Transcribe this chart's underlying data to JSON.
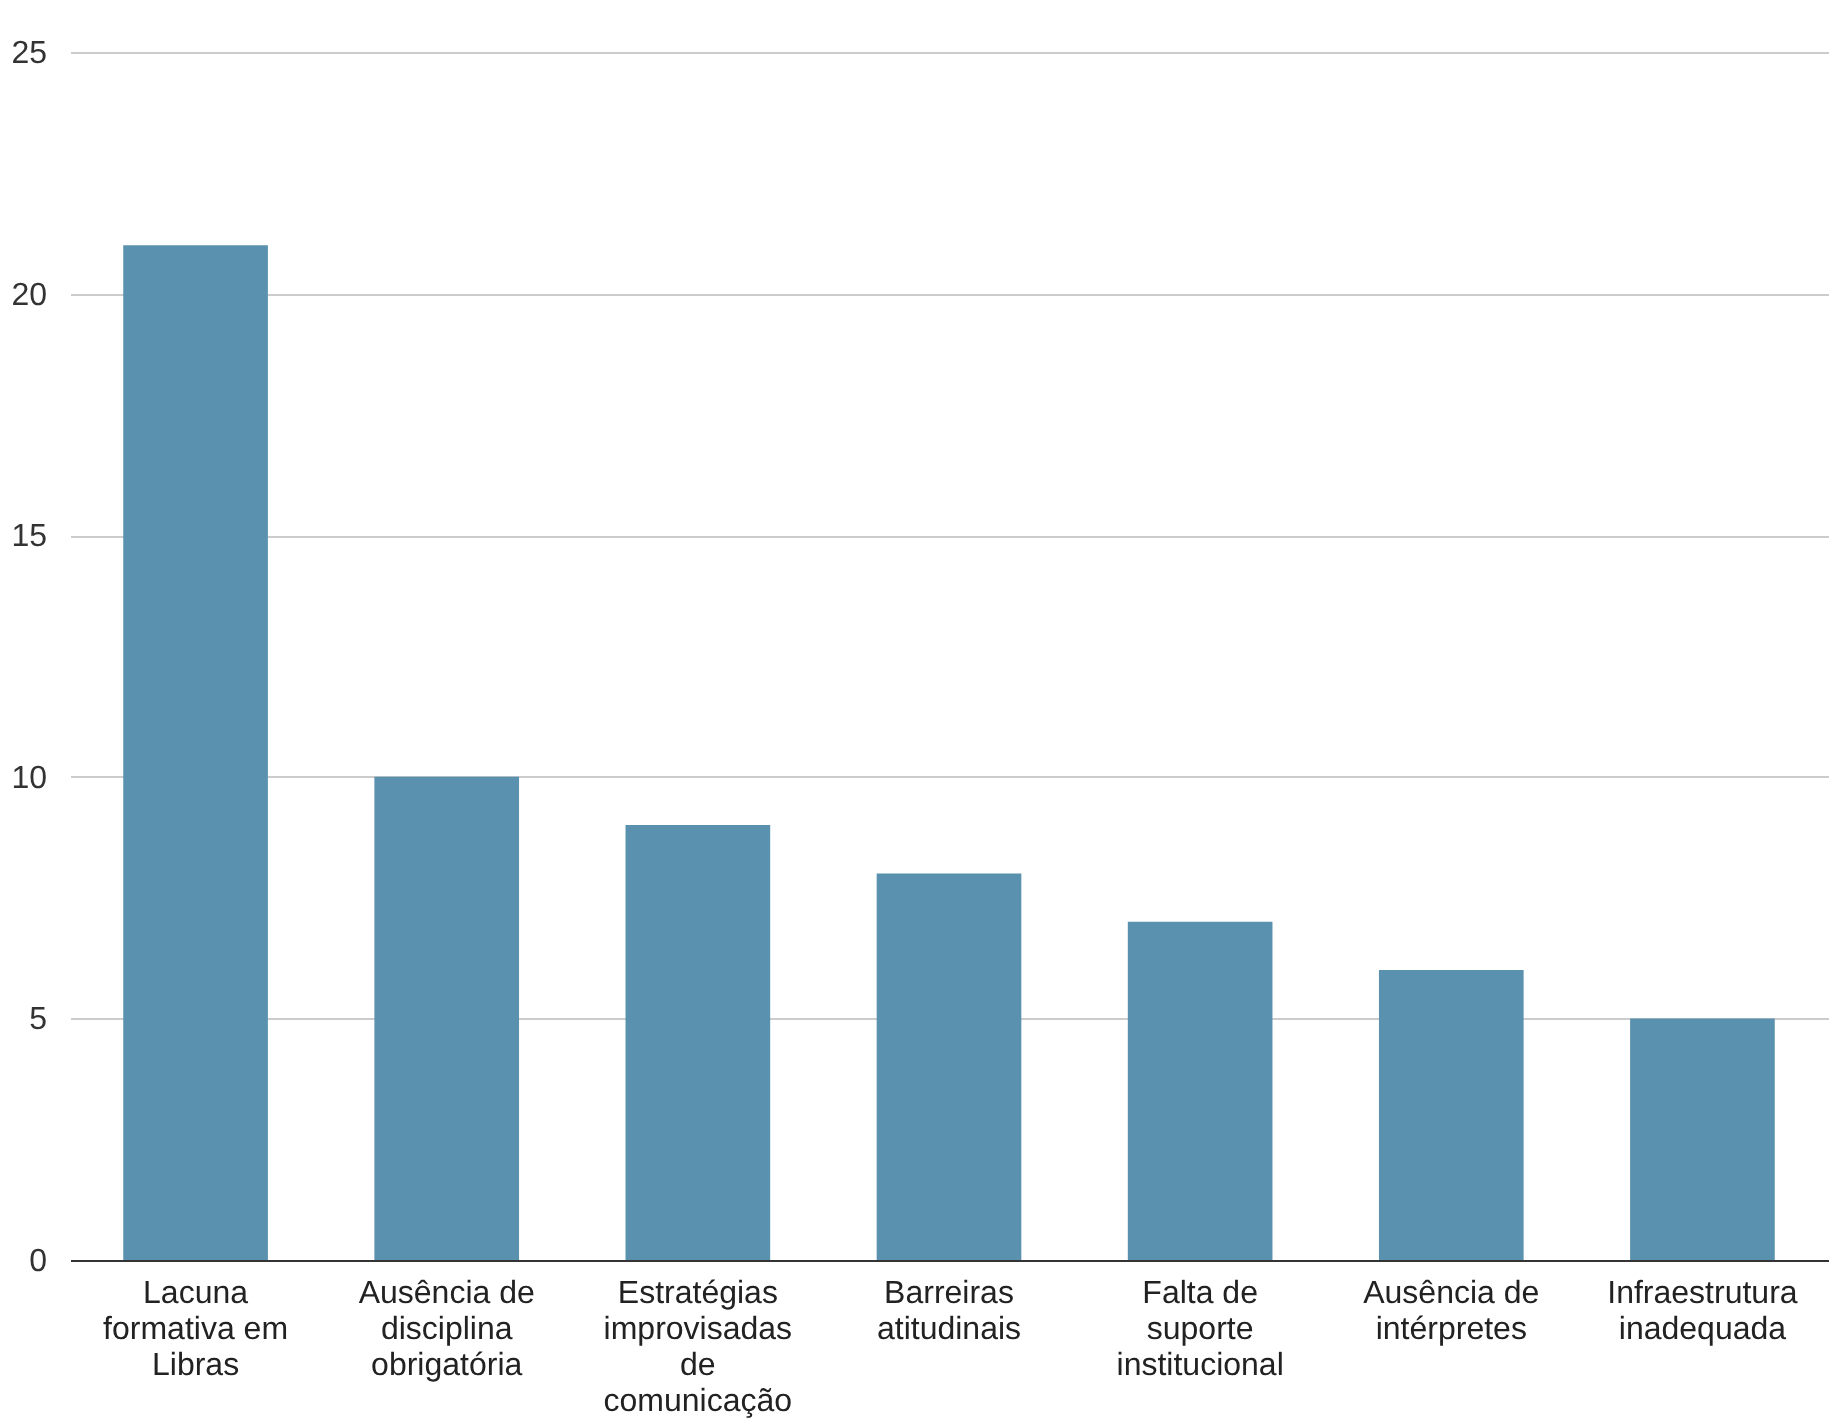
{
  "chart_data": {
    "type": "bar",
    "categories": [
      "Lacuna formativa em Libras",
      "Ausência de disciplina obrigatória",
      "Estratégias improvisadas de comunicação",
      "Barreiras atitudinais",
      "Falta de suporte institucional",
      "Ausência de intérpretes",
      "Infraestrutura inadequada"
    ],
    "values": [
      21,
      10,
      9,
      8,
      7,
      6,
      5
    ],
    "color": "#5a91ae",
    "ylim": [
      0,
      25
    ],
    "yticks": [
      0,
      5,
      10,
      15,
      20,
      25
    ],
    "grid": "y"
  }
}
